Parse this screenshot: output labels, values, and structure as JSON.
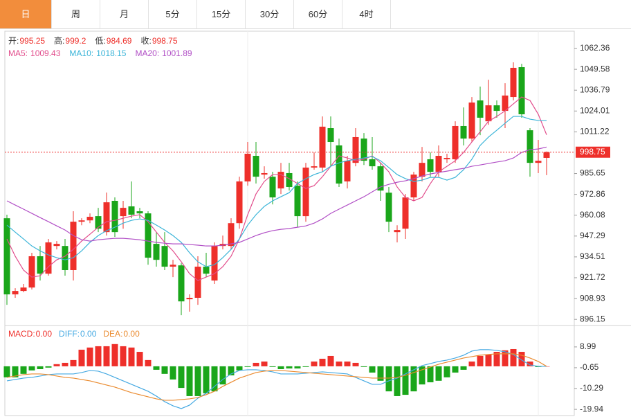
{
  "tabs": [
    "日",
    "周",
    "月",
    "5分",
    "15分",
    "30分",
    "60分",
    "4时"
  ],
  "active_tab": 0,
  "chart_data": [
    {
      "type": "candlestick",
      "up_color": "#ee2f2a",
      "down_color": "#1aa61a",
      "labels": {
        "open": "开:",
        "high": "高:",
        "low": "低:",
        "close": "收:"
      },
      "open": [
        958.2,
        911.5,
        913.6,
        915.7,
        934.9,
        924.2,
        941.2,
        941.2,
        926.4,
        956.1,
        956.9,
        959.5,
        949.7,
        968.9,
        959.5,
        965.5,
        962.5,
        961.2,
        942.5,
        941.2,
        928.5,
        929.3,
        908.5,
        909.4,
        928.5,
        920.0,
        941.2,
        941.2,
        955.2,
        980.8,
        996.5,
        985.0,
        983.7,
        976.5,
        985.9,
        978.2,
        959.5,
        989.3,
        989.3,
        1013.5,
        1002.9,
        980.8,
        992.2,
        1007.1,
        994.4,
        990.1,
        973.9,
        949.7,
        951.8,
        971.0,
        983.7,
        994.4,
        986.7,
        994.4,
        994.4,
        1014.8,
        1007.1,
        1030.5,
        1017.7,
        1027.5,
        1024.1,
        1032.6,
        1050.9,
        1012.2,
        992.2,
        995.25
      ],
      "high": [
        960.4,
        915.3,
        917.9,
        937.0,
        941.2,
        945.5,
        944.2,
        945.5,
        962.5,
        958.2,
        961.2,
        964.6,
        974.0,
        971.0,
        968.9,
        980.8,
        964.6,
        962.5,
        949.7,
        949.7,
        932.7,
        930.6,
        911.5,
        934.9,
        937.0,
        943.4,
        947.6,
        958.2,
        983.7,
        1005.0,
        1005.0,
        990.1,
        986.7,
        992.2,
        992.2,
        980.8,
        992.2,
        998.6,
        1020.7,
        1020.7,
        1007.1,
        996.5,
        1013.5,
        1010.5,
        1008.0,
        992.2,
        977.4,
        953.9,
        973.1,
        986.7,
        1002.0,
        998.6,
        1002.9,
        997.8,
        1017.7,
        1026.2,
        1032.6,
        1039.0,
        1043.2,
        1030.5,
        1041.1,
        1053.9,
        1053.0,
        1013.5,
        1006.3,
        999.2
      ],
      "low": [
        905.1,
        909.4,
        912.8,
        914.5,
        920.0,
        923.0,
        939.1,
        923.0,
        920.0,
        953.9,
        955.2,
        949.7,
        947.6,
        946.8,
        951.8,
        958.2,
        958.2,
        929.7,
        928.5,
        926.4,
        922.1,
        898.7,
        900.9,
        905.1,
        922.1,
        917.9,
        939.1,
        939.1,
        951.8,
        978.2,
        979.5,
        982.5,
        966.7,
        973.1,
        975.2,
        952.7,
        956.1,
        988.0,
        986.7,
        990.1,
        977.4,
        976.5,
        990.1,
        990.9,
        988.0,
        968.9,
        949.7,
        943.4,
        945.5,
        968.9,
        980.8,
        983.7,
        983.7,
        992.2,
        992.2,
        1002.9,
        1005.0,
        1009.2,
        1015.6,
        1019.9,
        1013.5,
        1030.5,
        1019.9,
        983.7,
        985.9,
        984.69
      ],
      "close": [
        911.5,
        913.6,
        915.7,
        934.9,
        924.2,
        943.4,
        942.5,
        926.4,
        956.1,
        956.9,
        959.1,
        951.8,
        968.0,
        949.7,
        964.6,
        960.4,
        961.2,
        934.0,
        932.7,
        928.5,
        929.7,
        907.2,
        909.4,
        928.5,
        924.2,
        941.2,
        942.5,
        955.2,
        980.8,
        997.8,
        983.7,
        985.9,
        971.0,
        986.7,
        977.4,
        959.5,
        989.3,
        990.1,
        1014.4,
        1005.0,
        979.5,
        993.5,
        1008.0,
        993.5,
        990.1,
        975.2,
        956.1,
        951.0,
        971.0,
        985.0,
        992.2,
        986.7,
        996.5,
        995.2,
        1014.8,
        1007.1,
        1029.2,
        1019.9,
        1027.5,
        1024.1,
        1033.5,
        1050.5,
        1022.0,
        992.2,
        993.5,
        998.75
      ],
      "series": [
        {
          "name": "MA5:",
          "color": "#e24d8c",
          "values": [
            945.5,
            934.9,
            926.4,
            922.1,
            922.9,
            928.5,
            932.7,
            934.9,
            939.1,
            944.2,
            948.4,
            952.7,
            956.1,
            956.9,
            958.2,
            959.5,
            960.4,
            956.1,
            949.7,
            943.4,
            938.2,
            931.5,
            924.2,
            920.0,
            922.1,
            924.2,
            928.5,
            934.9,
            945.5,
            960.4,
            973.1,
            980.8,
            985.0,
            985.0,
            982.5,
            979.5,
            976.5,
            978.2,
            983.7,
            990.1,
            996.5,
            995.2,
            993.5,
            994.4,
            996.5,
            992.2,
            986.7,
            977.4,
            971.0,
            968.9,
            971.0,
            979.5,
            986.7,
            990.1,
            993.5,
            998.6,
            1005.0,
            1011.3,
            1017.7,
            1020.7,
            1024.1,
            1028.4,
            1032.6,
            1030.5,
            1022.0,
            1009.43
          ]
        },
        {
          "name": "MA10:",
          "color": "#3ab4d8",
          "values": [
            954.0,
            949.7,
            945.5,
            941.2,
            938.2,
            935.7,
            934.0,
            932.7,
            934.0,
            938.2,
            943.4,
            947.6,
            950.6,
            952.7,
            955.2,
            956.9,
            957.8,
            956.9,
            954.0,
            951.0,
            947.6,
            943.4,
            937.0,
            931.5,
            928.5,
            929.7,
            934.0,
            939.1,
            945.5,
            954.0,
            960.4,
            965.5,
            968.9,
            971.4,
            973.9,
            979.5,
            982.5,
            985.0,
            986.7,
            990.1,
            992.2,
            993.5,
            994.4,
            995.2,
            996.1,
            993.5,
            989.3,
            985.0,
            982.5,
            980.8,
            981.6,
            983.3,
            983.3,
            981.6,
            983.3,
            988.0,
            994.4,
            1002.9,
            1008.0,
            1012.2,
            1016.5,
            1020.7,
            1020.7,
            1019.0,
            1018.2,
            1018.15
          ]
        },
        {
          "name": "MA20:",
          "color": "#b14fc6",
          "values": [
            968.9,
            966.3,
            963.8,
            961.2,
            958.6,
            956.1,
            953.5,
            951.0,
            947.6,
            945.0,
            944.2,
            945.0,
            945.5,
            945.9,
            945.9,
            945.5,
            945.0,
            944.2,
            943.4,
            942.9,
            942.5,
            942.5,
            942.1,
            941.7,
            941.2,
            941.2,
            941.7,
            942.5,
            943.4,
            945.5,
            947.6,
            949.3,
            950.6,
            951.4,
            951.9,
            952.7,
            953.5,
            955.2,
            957.8,
            961.2,
            963.8,
            966.3,
            968.9,
            971.4,
            974.4,
            977.4,
            979.0,
            980.3,
            981.2,
            982.5,
            984.1,
            985.4,
            986.3,
            987.1,
            988.0,
            988.8,
            990.1,
            990.9,
            991.8,
            992.7,
            993.5,
            995.2,
            998.6,
            1000.3,
            1000.7,
            1001.89
          ]
        }
      ],
      "ylim": [
        892.4,
        1073.0
      ],
      "yticks": [
        896.15,
        908.93,
        921.72,
        934.51,
        947.29,
        960.08,
        972.86,
        985.65,
        1011.22,
        1024.01,
        1036.79,
        1049.58,
        1062.36
      ]
    },
    {
      "type": "macd",
      "series": [
        {
          "name": "MACD:",
          "color": "#ee2f2a",
          "last_label": "0.00",
          "values": [
            -5.1,
            -5.1,
            -3.5,
            -1.9,
            -1.3,
            -0.6,
            1.0,
            1.6,
            2.9,
            7.7,
            8.7,
            9.3,
            9.3,
            10.3,
            9.3,
            8.7,
            6.7,
            2.9,
            -1.6,
            -3.5,
            -6.1,
            -10.0,
            -13.8,
            -13.8,
            -12.5,
            -11.6,
            -8.4,
            -4.2,
            -1.9,
            -0.3,
            1.6,
            2.2,
            -0.3,
            -1.3,
            -1.0,
            -1.0,
            -0.3,
            2.2,
            3.5,
            4.8,
            2.2,
            2.2,
            1.6,
            -0.3,
            -2.9,
            -6.7,
            -11.6,
            -13.8,
            -13.2,
            -11.6,
            -8.4,
            -7.4,
            -6.7,
            -5.1,
            -2.9,
            -1.6,
            2.2,
            4.8,
            5.5,
            6.7,
            7.4,
            8.0,
            6.7,
            2.2,
            -0.3,
            0
          ]
        },
        {
          "name": "DIFF:",
          "color": "#45a9e2",
          "last_label": "0.00",
          "values": [
            -6.74,
            -6.1,
            -5.46,
            -5.14,
            -4.49,
            -3.85,
            -3.53,
            -3.53,
            -3.53,
            -2.89,
            -1.93,
            -2.25,
            -3.53,
            -5.14,
            -6.74,
            -8.35,
            -9.95,
            -11.56,
            -13.8,
            -16.37,
            -18.3,
            -19.58,
            -17.98,
            -14.77,
            -12.52,
            -9.31,
            -6.1,
            -3.53,
            -1.93,
            -1.61,
            -1.61,
            -1.93,
            -2.57,
            -3.53,
            -3.53,
            -3.53,
            -3.21,
            -2.89,
            -2.57,
            -2.89,
            -3.21,
            -3.53,
            -5.14,
            -6.74,
            -8.35,
            -8.35,
            -6.74,
            -5.46,
            -3.53,
            -1.61,
            0.32,
            1.28,
            2.25,
            2.89,
            3.85,
            5.14,
            7.06,
            7.71,
            7.71,
            7.38,
            6.74,
            5.46,
            2.89,
            0.64,
            0,
            0
          ]
        },
        {
          "name": "DEA:",
          "color": "#ea8a2e",
          "last_label": "0.00",
          "values": [
            -5.14,
            -4.49,
            -3.85,
            -3.53,
            -3.53,
            -3.85,
            -4.49,
            -5.14,
            -5.46,
            -6.1,
            -6.74,
            -7.71,
            -8.67,
            -9.63,
            -10.91,
            -12.2,
            -13.16,
            -14.12,
            -15.09,
            -15.73,
            -15.73,
            -15.41,
            -15.09,
            -14.45,
            -13.16,
            -11.56,
            -9.31,
            -7.38,
            -5.46,
            -4.17,
            -2.89,
            -2.25,
            -1.93,
            -1.93,
            -2.25,
            -2.57,
            -2.89,
            -3.21,
            -3.53,
            -3.85,
            -4.17,
            -4.49,
            -4.82,
            -5.14,
            -5.46,
            -5.46,
            -5.46,
            -5.14,
            -4.17,
            -2.89,
            -1.61,
            -0.32,
            0.96,
            1.93,
            2.89,
            3.85,
            4.49,
            5.14,
            5.46,
            5.78,
            5.78,
            5.78,
            5.14,
            3.85,
            2.25,
            0
          ]
        }
      ],
      "ylim": [
        -22.8,
        18.9
      ],
      "yticks": [
        8.99,
        -0.65,
        -10.29,
        -19.94
      ]
    }
  ]
}
